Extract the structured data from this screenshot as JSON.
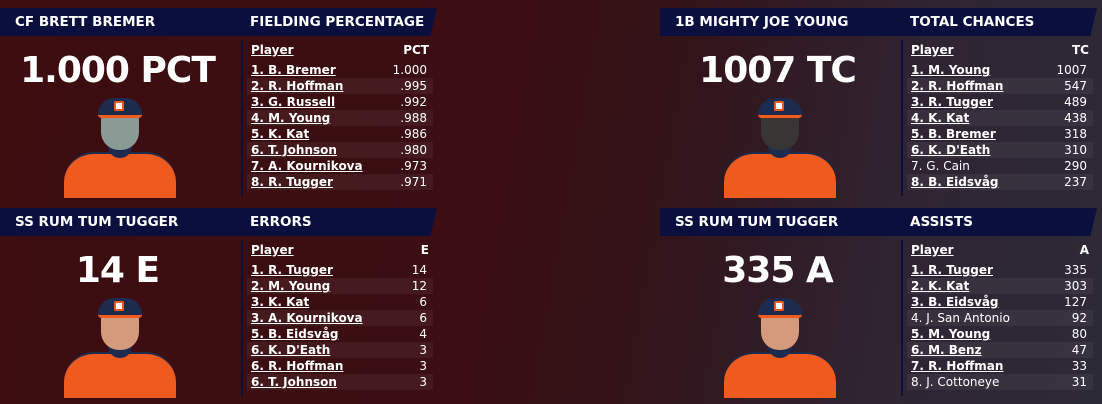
{
  "panels": [
    {
      "player": "CF BRETT BREMER",
      "stat_title": "FIELDING PERCENTAGE",
      "big_value": "1.000 PCT",
      "skin": "#8a9a94",
      "col_player": "Player",
      "col_stat": "PCT",
      "rows": [
        {
          "name": "1. B. Bremer",
          "value": "1.000",
          "team": true
        },
        {
          "name": "2. R. Hoffman",
          "value": ".995",
          "team": true
        },
        {
          "name": "3. G. Russell",
          "value": ".992",
          "team": true
        },
        {
          "name": "4. M. Young",
          "value": ".988",
          "team": true
        },
        {
          "name": "5. K. Kat",
          "value": ".986",
          "team": true
        },
        {
          "name": "6. T. Johnson",
          "value": ".980",
          "team": true
        },
        {
          "name": "7. A. Kournikova",
          "value": ".973",
          "team": true
        },
        {
          "name": "8. R. Tugger",
          "value": ".971",
          "team": true
        }
      ]
    },
    {
      "player": "1B MIGHTY JOE YOUNG",
      "stat_title": "TOTAL CHANCES",
      "big_value": "1007 TC",
      "skin": "#3a3535",
      "col_player": "Player",
      "col_stat": "TC",
      "rows": [
        {
          "name": "1. M. Young",
          "value": "1007",
          "team": true
        },
        {
          "name": "2. R. Hoffman",
          "value": "547",
          "team": true
        },
        {
          "name": "3. R. Tugger",
          "value": "489",
          "team": true
        },
        {
          "name": "4. K. Kat",
          "value": "438",
          "team": true
        },
        {
          "name": "5. B. Bremer",
          "value": "318",
          "team": true
        },
        {
          "name": "6. K. D'Eath",
          "value": "310",
          "team": true
        },
        {
          "name": "7. G. Cain",
          "value": "290",
          "team": false
        },
        {
          "name": "8. B. Eidsvåg",
          "value": "237",
          "team": true
        }
      ]
    },
    {
      "player": "SS RUM TUM TUGGER",
      "stat_title": "ERRORS",
      "big_value": "14 E",
      "skin": "#d49a7c",
      "col_player": "Player",
      "col_stat": "E",
      "rows": [
        {
          "name": "1. R. Tugger",
          "value": "14",
          "team": true
        },
        {
          "name": "2. M. Young",
          "value": "12",
          "team": true
        },
        {
          "name": "3. K. Kat",
          "value": "6",
          "team": true
        },
        {
          "name": "3. A. Kournikova",
          "value": "6",
          "team": true
        },
        {
          "name": "5. B. Eidsvåg",
          "value": "4",
          "team": true
        },
        {
          "name": "6. K. D'Eath",
          "value": "3",
          "team": true
        },
        {
          "name": "6. R. Hoffman",
          "value": "3",
          "team": true
        },
        {
          "name": "6. T. Johnson",
          "value": "3",
          "team": true
        }
      ]
    },
    {
      "player": "SS RUM TUM TUGGER",
      "stat_title": "ASSISTS",
      "big_value": "335 A",
      "skin": "#d49a7c",
      "col_player": "Player",
      "col_stat": "A",
      "rows": [
        {
          "name": "1. R. Tugger",
          "value": "335",
          "team": true
        },
        {
          "name": "2. K. Kat",
          "value": "303",
          "team": true
        },
        {
          "name": "3. B. Eidsvåg",
          "value": "127",
          "team": true
        },
        {
          "name": "4. J. San Antonio",
          "value": "92",
          "team": false
        },
        {
          "name": "5. M. Young",
          "value": "80",
          "team": true
        },
        {
          "name": "6. M. Benz",
          "value": "47",
          "team": true
        },
        {
          "name": "7. R. Hoffman",
          "value": "33",
          "team": true
        },
        {
          "name": "8. J. Cottoneye",
          "value": "31",
          "team": false
        }
      ]
    }
  ]
}
